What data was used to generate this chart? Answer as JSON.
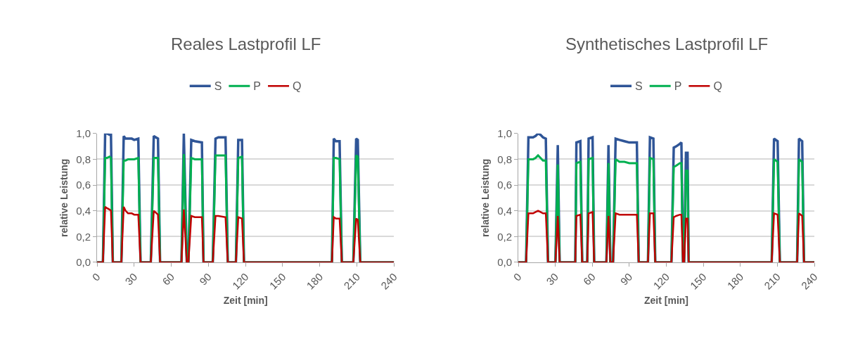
{
  "chart_data": [
    {
      "type": "line",
      "title": "Reales Lastprofil LF",
      "xlabel": "Zeit [min]",
      "ylabel": "relative Leistung",
      "legend": "top",
      "grid": "y",
      "marker": "none",
      "line_style": "solid",
      "xlim": [
        0,
        240
      ],
      "xticks": [
        0,
        30,
        60,
        90,
        120,
        150,
        180,
        210,
        240
      ],
      "ylim": [
        0,
        1.0
      ],
      "yticks": [
        {
          "value": 0,
          "label": "0,0"
        },
        {
          "value": 0.2,
          "label": "0,2"
        },
        {
          "value": 0.4,
          "label": "0,4"
        },
        {
          "value": 0.6,
          "label": "0,6"
        },
        {
          "value": 0.8,
          "label": "0,8"
        },
        {
          "value": 1.0,
          "label": "1,0"
        }
      ],
      "x": [
        0,
        4.7,
        6.5,
        8,
        10,
        11.2,
        12.7,
        19.6,
        21.5,
        23,
        25,
        28,
        30,
        33.3,
        35.1,
        43.4,
        45.8,
        49.2,
        50.9,
        68.2,
        70.1,
        72.5,
        73.8,
        76.1,
        79,
        84.7,
        86,
        93.5,
        95.7,
        98,
        103.8,
        105.6,
        112.2,
        114.1,
        117.1,
        118.7,
        189.8,
        191.3,
        193,
        196,
        197.8,
        207.1,
        209.4,
        210.7,
        212.7,
        240
      ],
      "series": [
        {
          "name": "S",
          "color": "#2f5597",
          "values": [
            0,
            0,
            1.0,
            1.0,
            0.99,
            0.99,
            0,
            0,
            0.98,
            0.96,
            0.96,
            0.96,
            0.95,
            0.96,
            0,
            0,
            0.98,
            0.96,
            0,
            0,
            1.0,
            0,
            0,
            0.95,
            0.94,
            0.93,
            0,
            0,
            0.96,
            0.97,
            0.97,
            0,
            0,
            0.95,
            0.95,
            0,
            0,
            0.96,
            0.94,
            0.94,
            0,
            0,
            0.96,
            0.95,
            0,
            0
          ]
        },
        {
          "name": "P",
          "color": "#00b050",
          "values": [
            0,
            0,
            0.81,
            0.81,
            0.82,
            0.81,
            0,
            0,
            0.79,
            0.79,
            0.8,
            0.8,
            0.8,
            0.81,
            0,
            0,
            0.81,
            0.81,
            0,
            0,
            0.84,
            0,
            0,
            0.81,
            0.8,
            0.8,
            0,
            0,
            0.83,
            0.83,
            0.83,
            0,
            0,
            0.81,
            0.82,
            0,
            0,
            0.81,
            0.81,
            0.8,
            0,
            0,
            0.83,
            0.82,
            0,
            0
          ]
        },
        {
          "name": "Q",
          "color": "#c00000",
          "values": [
            0,
            0,
            0.43,
            0.42,
            0.41,
            0.4,
            0,
            0,
            0.43,
            0.4,
            0.38,
            0.38,
            0.37,
            0.37,
            0,
            0,
            0.4,
            0.37,
            0,
            0,
            0.41,
            0,
            0,
            0.36,
            0.35,
            0.35,
            0,
            0,
            0.36,
            0.36,
            0.35,
            0,
            0,
            0.35,
            0.34,
            0,
            0,
            0.35,
            0.34,
            0.34,
            0,
            0,
            0.34,
            0.33,
            0,
            0
          ]
        }
      ]
    },
    {
      "type": "line",
      "title": "Synthetisches Lastprofil LF",
      "xlabel": "Zeit [min]",
      "ylabel": "relative Leistung",
      "legend": "top",
      "grid": "y",
      "marker": "none",
      "line_style": "solid",
      "xlim": [
        0,
        240
      ],
      "xticks": [
        0,
        30,
        60,
        90,
        120,
        150,
        180,
        210,
        240
      ],
      "ylim": [
        0,
        1.0
      ],
      "yticks": [
        {
          "value": 0,
          "label": "0,0"
        },
        {
          "value": 0.2,
          "label": "0,2"
        },
        {
          "value": 0.4,
          "label": "0,4"
        },
        {
          "value": 0.6,
          "label": "0,6"
        },
        {
          "value": 0.8,
          "label": "0,8"
        },
        {
          "value": 1.0,
          "label": "1,0"
        }
      ],
      "x": [
        0,
        6.3,
        8.2,
        12,
        14,
        16,
        18,
        20,
        22.3,
        24.1,
        30.1,
        32,
        33.5,
        46.2,
        47.1,
        50.3,
        51.8,
        55.9,
        57,
        60.2,
        61.5,
        71.4,
        73.1,
        74.6,
        76.8,
        78.9,
        82,
        86,
        90,
        96.1,
        97.6,
        105.1,
        106.7,
        109.5,
        111,
        124.1,
        126,
        128,
        131,
        132.2,
        133.5,
        134.4,
        135.9,
        137.2,
        138.1,
        205.4,
        207.3,
        210.2,
        212,
        226,
        227.5,
        230.1,
        231.6,
        240
      ],
      "series": [
        {
          "name": "S",
          "color": "#2f5597",
          "values": [
            0,
            0,
            0.97,
            0.97,
            0.98,
            1.0,
            0.99,
            0.97,
            0.96,
            0,
            0,
            0.91,
            0,
            0,
            0.93,
            0.94,
            0,
            0,
            0.96,
            0.97,
            0,
            0,
            0.91,
            0,
            0,
            0.96,
            0.95,
            0.94,
            0.93,
            0.93,
            0,
            0,
            0.97,
            0.96,
            0,
            0,
            0.89,
            0.9,
            0.92,
            0.93,
            0,
            0,
            0.85,
            0.85,
            0,
            0,
            0.96,
            0.94,
            0,
            0,
            0.96,
            0.94,
            0,
            0
          ]
        },
        {
          "name": "P",
          "color": "#00b050",
          "values": [
            0,
            0,
            0.8,
            0.8,
            0.81,
            0.83,
            0.81,
            0.79,
            0.79,
            0,
            0,
            0.76,
            0,
            0,
            0.77,
            0.78,
            0,
            0,
            0.8,
            0.81,
            0,
            0,
            0.77,
            0,
            0,
            0.8,
            0.78,
            0.78,
            0.77,
            0.77,
            0,
            0,
            0.81,
            0.8,
            0,
            0,
            0.74,
            0.75,
            0.77,
            0.77,
            0,
            0,
            0.71,
            0.71,
            0,
            0,
            0.8,
            0.78,
            0,
            0,
            0.8,
            0.78,
            0,
            0
          ]
        },
        {
          "name": "Q",
          "color": "#c00000",
          "values": [
            0,
            0,
            0.38,
            0.38,
            0.39,
            0.4,
            0.39,
            0.38,
            0.38,
            0,
            0,
            0.36,
            0,
            0,
            0.36,
            0.37,
            0,
            0,
            0.38,
            0.39,
            0,
            0,
            0.36,
            0,
            0,
            0.38,
            0.37,
            0.37,
            0.37,
            0.37,
            0,
            0,
            0.38,
            0.38,
            0,
            0,
            0.35,
            0.36,
            0.37,
            0.37,
            0,
            0,
            0.34,
            0.34,
            0,
            0,
            0.38,
            0.37,
            0,
            0,
            0.38,
            0.36,
            0,
            0
          ]
        }
      ]
    }
  ]
}
